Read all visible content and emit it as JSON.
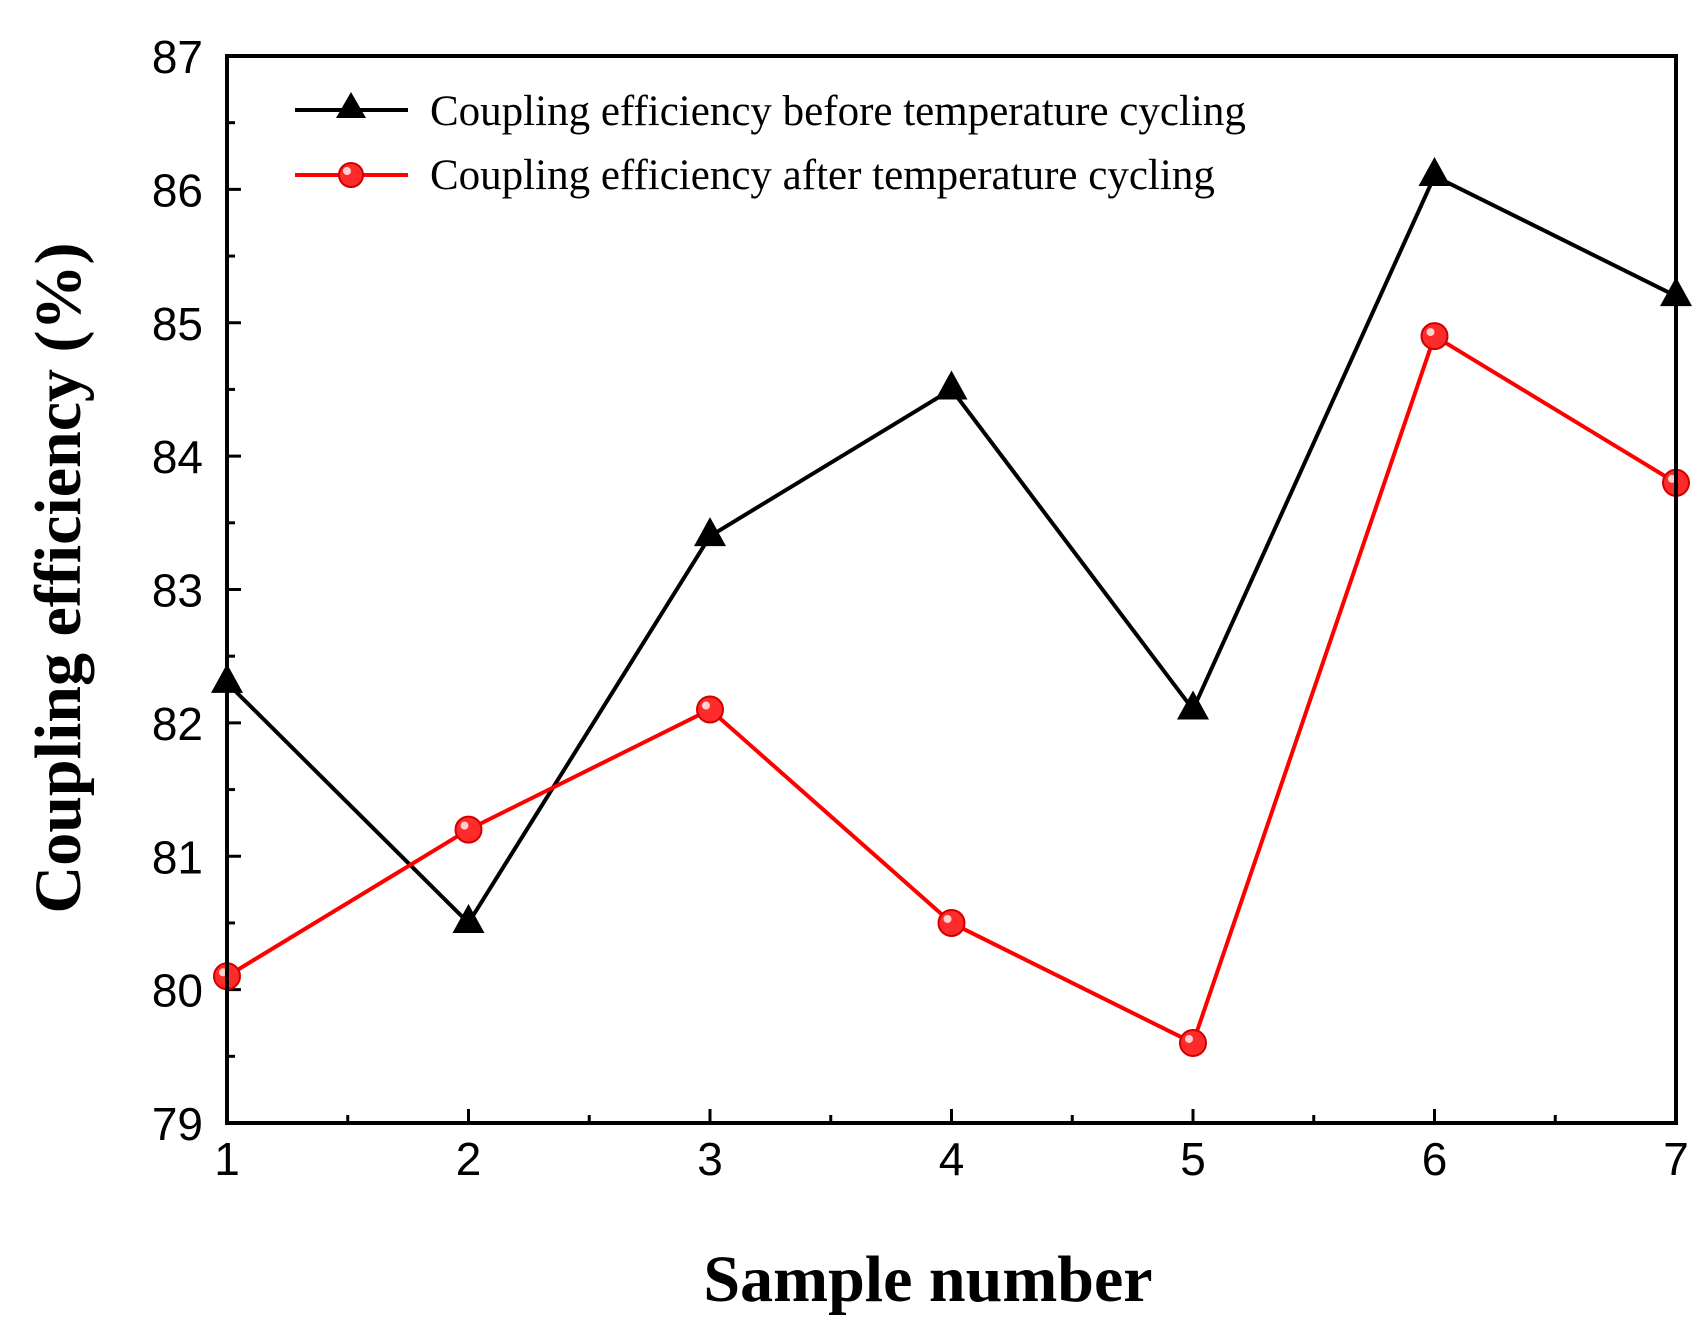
{
  "chart_data": {
    "type": "line",
    "title": "",
    "xlabel": "Sample number",
    "ylabel": "Coupling efficiency (%)",
    "x": [
      1,
      2,
      3,
      4,
      5,
      6,
      7
    ],
    "x_tick_labels": [
      "1",
      "2",
      "3",
      "4",
      "5",
      "6",
      "7"
    ],
    "y_tick_labels": [
      "79",
      "80",
      "81",
      "82",
      "83",
      "84",
      "85",
      "86",
      "87"
    ],
    "xlim": [
      1,
      7
    ],
    "ylim": [
      79,
      87
    ],
    "grid": false,
    "legend_position": "top-left",
    "series": [
      {
        "name": "Coupling efficiency before temperature cycling",
        "marker": "triangle",
        "color": "#000000",
        "values": [
          82.3,
          80.5,
          83.4,
          84.5,
          82.1,
          86.1,
          85.2
        ]
      },
      {
        "name": "Coupling efficiency after temperature cycling",
        "marker": "circle",
        "color": "#ff0000",
        "values": [
          80.1,
          81.2,
          82.1,
          80.5,
          79.6,
          84.9,
          83.8
        ]
      }
    ]
  }
}
